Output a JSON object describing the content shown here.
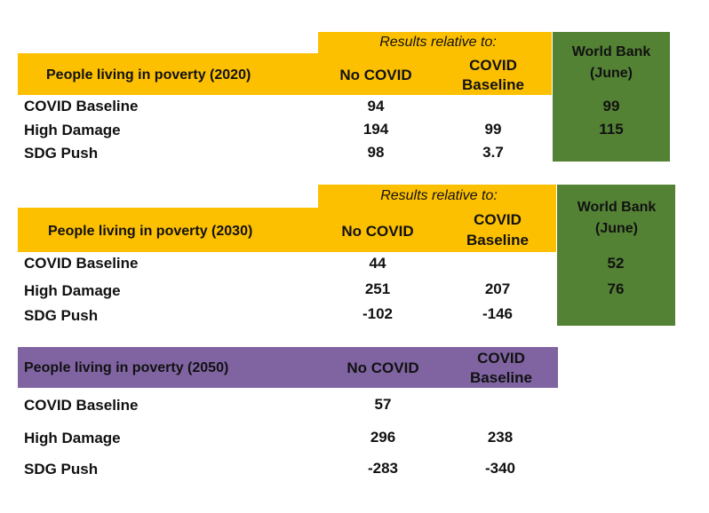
{
  "table_2020": {
    "subheader": "Results relative to:",
    "title": "People living in poverty (2020)",
    "col_no_covid": "No COVID",
    "col_covid_line1": "COVID",
    "col_covid_line2": "Baseline",
    "wb_line1": "World Bank",
    "wb_line2": "(June)",
    "rows": [
      {
        "label": "COVID Baseline",
        "no_covid": "94",
        "covid": "",
        "wb": "99"
      },
      {
        "label": "High Damage",
        "no_covid": "194",
        "covid": "99",
        "wb": "115"
      },
      {
        "label": "SDG Push",
        "no_covid": "98",
        "covid": "3.7",
        "wb": ""
      }
    ]
  },
  "table_2030": {
    "subheader": "Results relative to:",
    "title": "People living in poverty (2030)",
    "col_no_covid": "No COVID",
    "col_covid_line1": "COVID",
    "col_covid_line2": "Baseline",
    "wb_line1": "World Bank",
    "wb_line2": "(June)",
    "rows": [
      {
        "label": "COVID Baseline",
        "no_covid": "44",
        "covid": "",
        "wb": "52"
      },
      {
        "label": "High Damage",
        "no_covid": "251",
        "covid": "207",
        "wb": "76"
      },
      {
        "label": "SDG Push",
        "no_covid": "-102",
        "covid": "-146",
        "wb": ""
      }
    ]
  },
  "table_2050": {
    "title": "People living in poverty (2050)",
    "col_no_covid": "No COVID",
    "col_covid_line1": "COVID",
    "col_covid_line2": "Baseline",
    "rows": [
      {
        "label": "COVID Baseline",
        "no_covid": "57",
        "covid": ""
      },
      {
        "label": "High Damage",
        "no_covid": "296",
        "covid": "238"
      },
      {
        "label": "SDG Push",
        "no_covid": "-283",
        "covid": "-340"
      }
    ]
  }
}
